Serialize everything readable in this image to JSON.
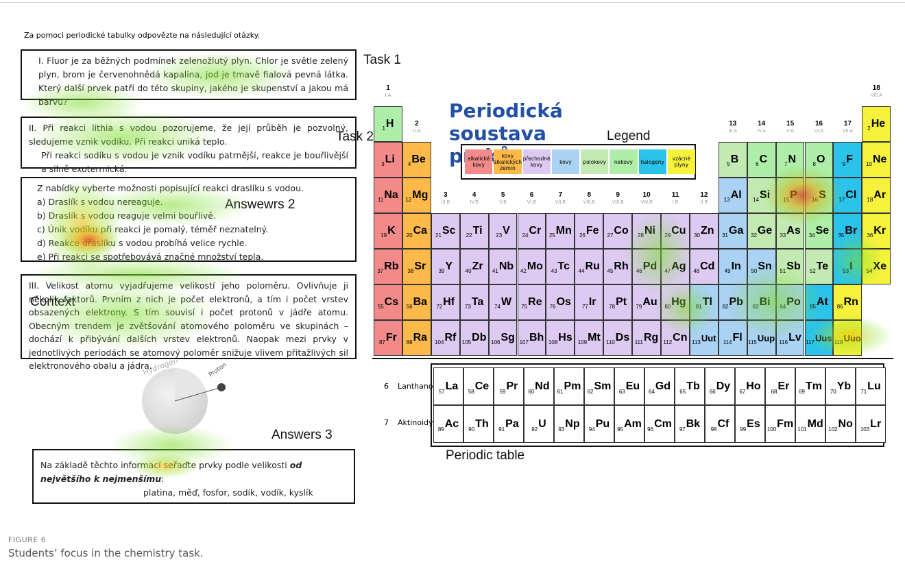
{
  "instruction": "Za pomoci periodické tabulky odpovězte na následující otázky.",
  "task1": "I. Fluor je za běžných podmínek zelenožlutý plyn. Chlor je světle zelený plyn, brom je červenohnědá kapalina, jod je tmavě fialová pevná látka. Který další prvek patří do této skupiny, jakého je skupenství a jakou má barvu?",
  "task2": [
    "II. Při reakci lithia s vodou pozorujeme, že její průběh je pozvolný, sledujeme vznik vodíku. Při reakci uniká teplo.",
    "Při reakci sodíku s vodou je vznik vodíku patrnější, reakce je bouřlivější a silně exotermická."
  ],
  "answers2": {
    "intro": "Z nabídky vyberte možnosti popisující reakci draslíku s vodou.",
    "options": [
      "a) Draslík s vodou nereaguje.",
      "b) Draslík s vodou reaguje velmi bouřlivě.",
      "c) Únik vodíku při reakci je pomalý, téměř neznatelný.",
      "d) Reakce draslíku s vodou probíhá velice rychle.",
      "e) Při reakci se spotřebovává značné množství tepla."
    ]
  },
  "context": "III. Velikost atomu vyjadřujeme velikostí jeho poloměru. Ovlivňuje ji několik faktorů. Prvním z nich je počet elektronů, a tím i počet vrstev obsazených elektrony. S tím souvisí i počet protonů v jádře atomu. Obecným trendem je zvětšování atomového poloměru ve skupinách – dochází k přibývání dalších vrstev elektronů. Naopak mezi prvky v jednotlivých periodách se atomový poloměr snižuje vlivem přitažlivých sil elektronového obalu a jádra.",
  "answers3": {
    "lead": "Na základě těchto informací seřaďte prvky podle velikosti ",
    "emphasis": "od největšího k nejmenšímu",
    "colon": ":",
    "list": "platina, měď, fosfor, sodík, vodík, kyslík"
  },
  "labels": {
    "task1": "Task 1",
    "task2": "Task 2",
    "answers2": "Answewrs 2",
    "context": "Context",
    "answers3": "Answers 3",
    "legend": "Legend",
    "periodic_table": "Periodic table"
  },
  "illustration": {
    "hydrogen": "Hydrogen",
    "proton": "Proton"
  },
  "table": {
    "title": "Periodická soustava prvků",
    "groups": [
      {
        "number": 1,
        "label": "I.A"
      },
      {
        "number": 2,
        "label": "II.A"
      },
      {
        "number": 3,
        "label": "III.B"
      },
      {
        "number": 4,
        "label": "IV.B"
      },
      {
        "number": 5,
        "label": "V.B"
      },
      {
        "number": 6,
        "label": "VI.B"
      },
      {
        "number": 7,
        "label": "VII.B"
      },
      {
        "number": 8,
        "label": "VIII.B"
      },
      {
        "number": 9,
        "label": "VIII.B"
      },
      {
        "number": 10,
        "label": "VIII.B"
      },
      {
        "number": 11,
        "label": "I.B"
      },
      {
        "number": 12,
        "label": "II.B"
      },
      {
        "number": 13,
        "label": "III.A"
      },
      {
        "number": 14,
        "label": "IV.A"
      },
      {
        "number": 15,
        "label": "V.A"
      },
      {
        "number": 16,
        "label": "VI.A"
      },
      {
        "number": 17,
        "label": "VII.A"
      },
      {
        "number": 18,
        "label": "VIII.A"
      }
    ],
    "legend": [
      {
        "name": "alkalické kovy",
        "color": "#f28a8a"
      },
      {
        "name": "kovy alkalických zemin",
        "color": "#fdb94a"
      },
      {
        "name": "přechodné kovy",
        "color": "#dccaf2"
      },
      {
        "name": "kovy",
        "color": "#a9d2f3"
      },
      {
        "name": "polokovy",
        "color": "#c4eab4"
      },
      {
        "name": "nekovy",
        "color": "#aeeea8"
      },
      {
        "name": "halogeny",
        "color": "#2cc3ea"
      },
      {
        "name": "vzácné plyny",
        "color": "#f6f23c"
      }
    ],
    "lanthanoids": {
      "period": 6,
      "name": "Lanthanoidy"
    },
    "actinoids": {
      "period": 7,
      "name": "Aktinoidy"
    },
    "elements": [
      "H",
      "He",
      "Li",
      "Be",
      "B",
      "C",
      "N",
      "O",
      "F",
      "Ne",
      "Na",
      "Mg",
      "Al",
      "Si",
      "P",
      "S",
      "Cl",
      "Ar",
      "K",
      "Ca",
      "Sc",
      "Ti",
      "V",
      "Cr",
      "Mn",
      "Fe",
      "Co",
      "Ni",
      "Cu",
      "Zn",
      "Ga",
      "Ge",
      "As",
      "Se",
      "Br",
      "Kr",
      "Rb",
      "Sr",
      "Y",
      "Zr",
      "Nb",
      "Mo",
      "Tc",
      "Ru",
      "Rh",
      "Pd",
      "Ag",
      "Cd",
      "In",
      "Sn",
      "Sb",
      "Te",
      "I",
      "Xe",
      "Cs",
      "Ba",
      "La",
      "Ce",
      "Pr",
      "Nd",
      "Pm",
      "Sm",
      "Eu",
      "Gd",
      "Tb",
      "Dy",
      "Ho",
      "Er",
      "Tm",
      "Yb",
      "Lu",
      "Hf",
      "Ta",
      "W",
      "Re",
      "Os",
      "Ir",
      "Pt",
      "Au",
      "Hg",
      "Tl",
      "Pb",
      "Bi",
      "Po",
      "At",
      "Rn",
      "Fr",
      "Ra",
      "Ac",
      "Th",
      "Pa",
      "U",
      "Np",
      "Pu",
      "Am",
      "Cm",
      "Bk",
      "Cf",
      "Es",
      "Fm",
      "Md",
      "No",
      "Lr",
      "Rf",
      "Db",
      "Sg",
      "Bh",
      "Hs",
      "Mt",
      "Ds",
      "Rg",
      "Cn",
      "Uut",
      "Fl",
      "Uup",
      "Lv",
      "Uus",
      "Uuo"
    ]
  },
  "caption": {
    "label": "FIGURE 6",
    "text": "Students’ focus in the chemistry task."
  }
}
